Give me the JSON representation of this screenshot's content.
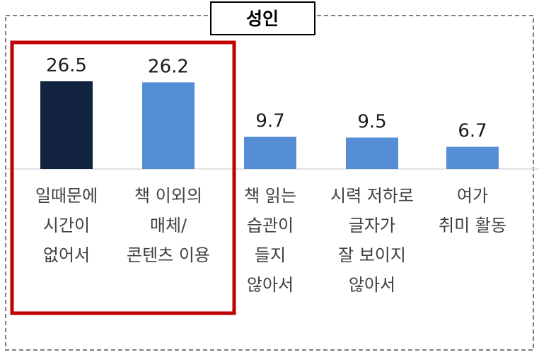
{
  "chart_data": {
    "type": "bar",
    "title": "성인",
    "xlabel": "",
    "ylabel": "",
    "ylim": [
      0,
      30
    ],
    "grid": false,
    "categories": [
      [
        "일때문에",
        "시간이",
        "없어서"
      ],
      [
        "책 이외의",
        "매체/",
        "콘텐츠 이용"
      ],
      [
        "책 읽는",
        "습관이",
        "들지",
        "않아서"
      ],
      [
        "시력 저하로",
        "글자가",
        "잘 보이지",
        "않아서"
      ],
      [
        "여가",
        "취미 활동"
      ]
    ],
    "values": [
      26.5,
      26.2,
      9.7,
      9.5,
      6.7
    ],
    "value_labels": [
      "26.5",
      "26.2",
      "9.7",
      "9.5",
      "6.7"
    ],
    "bar_colors": [
      "#12233f",
      "#558ed5",
      "#558ed5",
      "#558ed5",
      "#558ed5"
    ],
    "highlight": {
      "color": "#c00000",
      "categories_highlighted": [
        0,
        1
      ]
    }
  }
}
